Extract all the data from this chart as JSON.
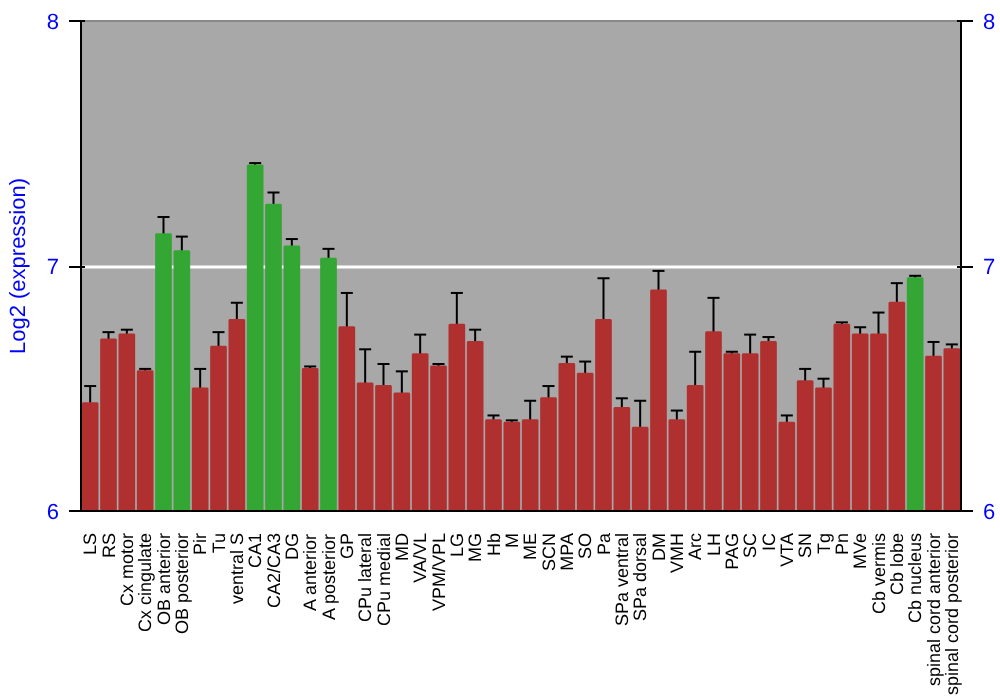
{
  "chart_data": {
    "type": "bar",
    "ylabel": "Log2 (expression)",
    "categories": [
      "LS",
      "RS",
      "Cx motor",
      "Cx cingulate",
      "OB anterior",
      "OB posterior",
      "Pir",
      "Tu",
      "ventral S",
      "CA1",
      "CA2/CA3",
      "DG",
      "A anterior",
      "A posterior",
      "GP",
      "CPu lateral",
      "CPu medial",
      "MD",
      "VA/VL",
      "VPM/VPL",
      "LG",
      "MG",
      "Hb",
      "M",
      "ME",
      "SCN",
      "MPA",
      "SO",
      "Pa",
      "SPa ventral",
      "SPa dorsal",
      "DM",
      "VMH",
      "Arc",
      "LH",
      "PAG",
      "SC",
      "IC",
      "VTA",
      "SN",
      "Tg",
      "Pn",
      "MVe",
      "Cb vermis",
      "Cb lobe",
      "Cb nucleus",
      "spinal cord anterior",
      "spinal cord posterior"
    ],
    "values": [
      6.44,
      6.7,
      6.72,
      6.57,
      7.13,
      7.06,
      6.5,
      6.67,
      6.78,
      7.41,
      7.25,
      7.08,
      6.58,
      7.03,
      6.75,
      6.52,
      6.51,
      6.48,
      6.64,
      6.59,
      6.76,
      6.69,
      6.37,
      6.36,
      6.37,
      6.46,
      6.6,
      6.56,
      6.78,
      6.42,
      6.34,
      6.9,
      6.37,
      6.51,
      6.73,
      6.64,
      6.64,
      6.69,
      6.36,
      6.53,
      6.5,
      6.76,
      6.72,
      6.72,
      6.85,
      6.95,
      6.63,
      6.66
    ],
    "errors": [
      0.07,
      0.03,
      0.02,
      0.01,
      0.07,
      0.06,
      0.08,
      0.06,
      0.07,
      0.01,
      0.05,
      0.03,
      0.01,
      0.04,
      0.14,
      0.14,
      0.09,
      0.09,
      0.08,
      0.01,
      0.13,
      0.05,
      0.02,
      0.01,
      0.08,
      0.05,
      0.03,
      0.05,
      0.17,
      0.04,
      0.11,
      0.08,
      0.04,
      0.14,
      0.14,
      0.01,
      0.08,
      0.02,
      0.03,
      0.05,
      0.04,
      0.01,
      0.03,
      0.09,
      0.08,
      0.01,
      0.06,
      0.02
    ],
    "colors": [
      "#b03030",
      "#b03030",
      "#b03030",
      "#b03030",
      "#33a633",
      "#33a633",
      "#b03030",
      "#b03030",
      "#b03030",
      "#33a633",
      "#33a633",
      "#33a633",
      "#b03030",
      "#33a633",
      "#b03030",
      "#b03030",
      "#b03030",
      "#b03030",
      "#b03030",
      "#b03030",
      "#b03030",
      "#b03030",
      "#b03030",
      "#b03030",
      "#b03030",
      "#b03030",
      "#b03030",
      "#b03030",
      "#b03030",
      "#b03030",
      "#b03030",
      "#b03030",
      "#b03030",
      "#b03030",
      "#b03030",
      "#b03030",
      "#b03030",
      "#b03030",
      "#b03030",
      "#b03030",
      "#b03030",
      "#b03030",
      "#b03030",
      "#b03030",
      "#b03030",
      "#33a633",
      "#b03030",
      "#b03030"
    ],
    "ylim": [
      6,
      8
    ],
    "yticks": [
      6,
      7,
      8
    ],
    "y2lim": [
      6,
      8
    ],
    "y2ticks": [
      6,
      7,
      8
    ],
    "grid": "y"
  }
}
